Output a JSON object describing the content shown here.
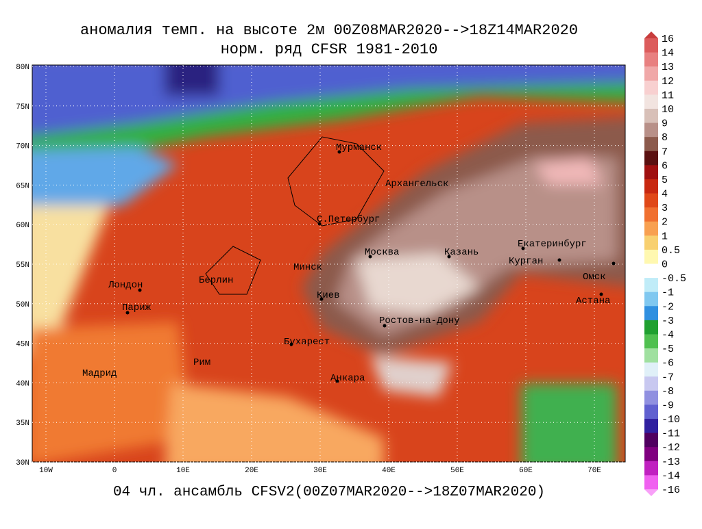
{
  "header": {
    "title_line1": "аномалия темп. на высоте 2м 00Z08MAR2020-->18Z14MAR2020",
    "title_line2": "норм. ряд CFSR 1981-2010"
  },
  "footer": "04 чл. ансамбль CFSV2(00Z07MAR2020-->18Z07MAR2020)",
  "map": {
    "lon_labels": [
      "10W",
      "0",
      "10E",
      "20E",
      "30E",
      "40E",
      "50E",
      "60E",
      "70E"
    ],
    "lat_labels": [
      "80N",
      "75N",
      "70N",
      "65N",
      "60N",
      "55N",
      "50N",
      "45N",
      "40N",
      "35N",
      "30N"
    ],
    "cities": [
      "Мурманск",
      "Архангельск",
      "С.Петербург",
      "Москва",
      "Казань",
      "Екатеринбург",
      "Курган",
      "Омск",
      "Астана",
      "Минск",
      "Киев",
      "Лондон",
      "Париж",
      "Берлин",
      "Мадрид",
      "Рим",
      "Бухарест",
      "Анкара",
      "Ростов-на-Дону"
    ]
  },
  "colorbar": {
    "labels": [
      16,
      14,
      13,
      12,
      11,
      10,
      9,
      8,
      7,
      6,
      5,
      4,
      3,
      2,
      1,
      0.5,
      0,
      -0.5,
      -1,
      -2,
      -3,
      -4,
      -5,
      -6,
      -7,
      -8,
      -9,
      -10,
      -11,
      -12,
      -13,
      -14,
      -16
    ],
    "colors": [
      "#c83c3c",
      "#dc5c5c",
      "#e88080",
      "#f0a8a8",
      "#f8d0d0",
      "#f2e4e0",
      "#d8c0b8",
      "#b89088",
      "#8c5a4c",
      "#5a1010",
      "#a01010",
      "#c82810",
      "#e04818",
      "#f07030",
      "#f8a050",
      "#f8d070",
      "#fff8b0",
      "#ffffff",
      "#c0ecf8",
      "#80c8f0",
      "#3090e0",
      "#20a030",
      "#50c050",
      "#a0e0a0",
      "#e0f0f8",
      "#c8c8f0",
      "#9090e0",
      "#6060d0",
      "#3020a0",
      "#500060",
      "#800080",
      "#c020c0",
      "#f060f0",
      "#f8a0f8"
    ]
  }
}
